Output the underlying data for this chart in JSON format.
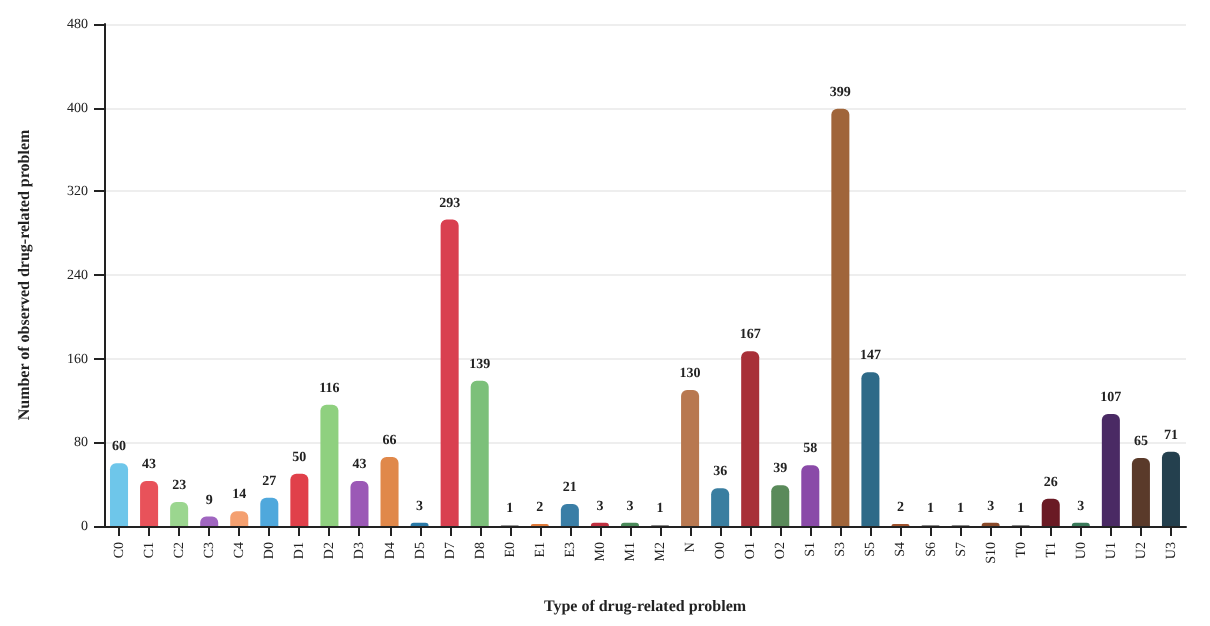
{
  "chart_data": {
    "type": "bar",
    "xlabel": "Type of drug-related problem",
    "ylabel": "Number of observed drug-related problem",
    "categories": [
      "C0",
      "C1",
      "C2",
      "C3",
      "C4",
      "D0",
      "D1",
      "D2",
      "D3",
      "D4",
      "D5",
      "D7",
      "D8",
      "E0",
      "E1",
      "E3",
      "M0",
      "M1",
      "M2",
      "N",
      "O0",
      "O1",
      "O2",
      "S1",
      "S3",
      "S5",
      "S4",
      "S6",
      "S7",
      "S10",
      "T0",
      "T1",
      "U0",
      "U1",
      "U2",
      "U3"
    ],
    "values": [
      60,
      43,
      23,
      9,
      14,
      27,
      50,
      116,
      43,
      66,
      3,
      293,
      139,
      1,
      2,
      21,
      3,
      3,
      1,
      130,
      36,
      167,
      39,
      58,
      399,
      147,
      2,
      1,
      1,
      3,
      1,
      26,
      3,
      107,
      65,
      71
    ],
    "colors": [
      "#6ec6ea",
      "#e8525a",
      "#9bd68f",
      "#a066c0",
      "#f4a070",
      "#4fa8dc",
      "#e0404a",
      "#8fd07f",
      "#9b59b6",
      "#e0884a",
      "#2a7aa8",
      "#d94050",
      "#7cc07a",
      "#999999",
      "#e07a3a",
      "#3a7ea6",
      "#c03040",
      "#4a8a5a",
      "#888888",
      "#b87850",
      "#3a7ea0",
      "#a83038",
      "#5a8a5a",
      "#8a4aa8",
      "#a0653a",
      "#2e6a88",
      "#a0522d",
      "#888888",
      "#888888",
      "#8a4a2a",
      "#888888",
      "#6a1a24",
      "#3a7a5a",
      "#4a2a64",
      "#5a3a2a",
      "#24404e"
    ],
    "ylim": [
      0,
      480
    ],
    "yticks": [
      0,
      80,
      160,
      240,
      320,
      400,
      480
    ],
    "grid": "y",
    "data_labels": true
  }
}
